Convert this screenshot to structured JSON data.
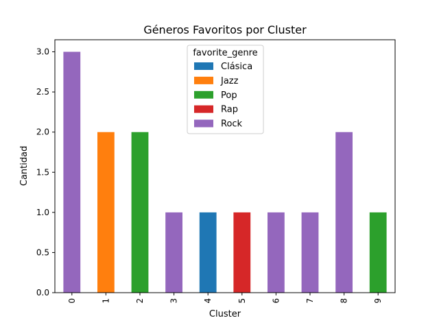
{
  "chart_data": {
    "type": "bar",
    "stacked": true,
    "title": "Géneros Favoritos por Cluster",
    "xlabel": "Cluster",
    "ylabel": "Cantidad",
    "categories": [
      "0",
      "1",
      "2",
      "3",
      "4",
      "5",
      "6",
      "7",
      "8",
      "9"
    ],
    "ylim": [
      0,
      3.15
    ],
    "yticks": [
      "0.0",
      "0.5",
      "1.0",
      "1.5",
      "2.0",
      "2.5",
      "3.0"
    ],
    "grid": false,
    "legend": {
      "title": "favorite_genre",
      "placement": "top-center"
    },
    "series": [
      {
        "name": "Clásica",
        "color": "#1f77b4",
        "values": [
          0,
          0,
          0,
          0,
          1,
          0,
          0,
          0,
          0,
          0
        ]
      },
      {
        "name": "Jazz",
        "color": "#ff7f0e",
        "values": [
          0,
          2,
          0,
          0,
          0,
          0,
          0,
          0,
          0,
          0
        ]
      },
      {
        "name": "Pop",
        "color": "#2ca02c",
        "values": [
          0,
          0,
          2,
          0,
          0,
          0,
          0,
          0,
          0,
          1
        ]
      },
      {
        "name": "Rap",
        "color": "#d62728",
        "values": [
          0,
          0,
          0,
          0,
          0,
          1,
          0,
          0,
          0,
          0
        ]
      },
      {
        "name": "Rock",
        "color": "#9467bd",
        "values": [
          3,
          0,
          0,
          1,
          0,
          0,
          1,
          1,
          2,
          0
        ]
      }
    ]
  }
}
